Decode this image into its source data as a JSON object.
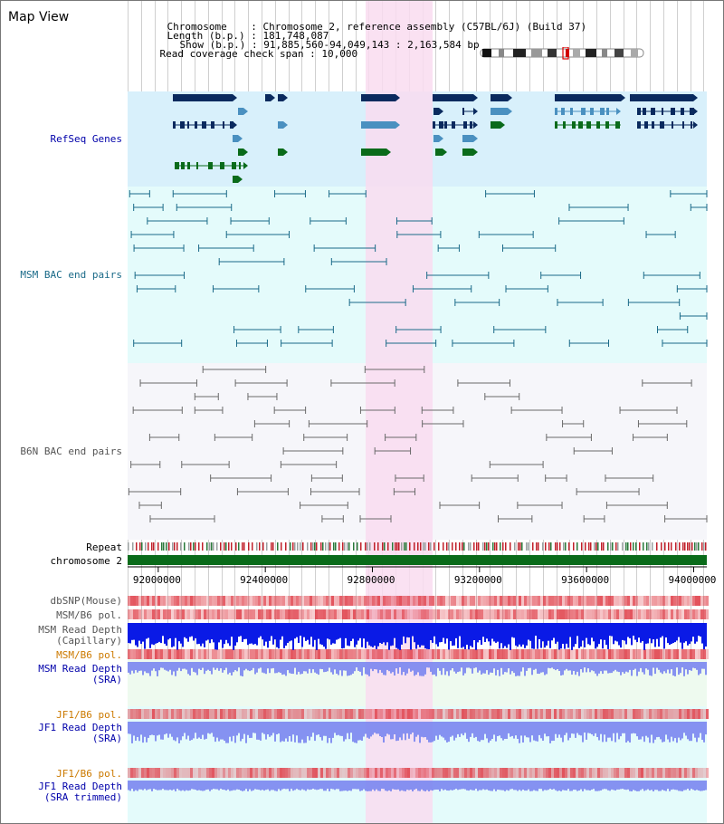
{
  "view": {
    "title": "Map View",
    "header": {
      "chromosome_label": "Chromosome",
      "chromosome_value": "Chromosome 2, reference assembly (C57BL/6J) (Build 37)",
      "length_label": "Length (b.p.)",
      "length_value": "181,748,087",
      "show_label": "Show (b.p.)",
      "show_value": "91,885,560-94,049,143 : 2,163,584 bp",
      "coverage_label": "Read coverage check span",
      "coverage_value": "10,000"
    }
  },
  "tracks": {
    "refseq": "RefSeq Genes",
    "msm_bac": "MSM BAC end pairs",
    "b6n_bac": "B6N BAC end pairs",
    "repeat": "Repeat",
    "chromosome": "chromosome 2",
    "dbsnp": "dbSNP(Mouse)",
    "msm_b6_pol_1": "MSM/B6 pol.",
    "msm_read_depth_cap_1": "MSM Read Depth",
    "msm_read_depth_cap_2": "(Capillary)",
    "msm_b6_pol_2": "MSM/B6 pol.",
    "msm_read_depth_sra_1": "MSM Read Depth",
    "msm_read_depth_sra_2": "(SRA)",
    "jf1_b6_pol_1": "JF1/B6 pol.",
    "jf1_read_depth_1": "JF1 Read Depth",
    "jf1_read_depth_2": "(SRA)",
    "jf1_b6_pol_2": "JF1/B6 pol.",
    "jf1_read_depth_trim_1": "JF1 Read Depth",
    "jf1_read_depth_trim_2": "(SRA trimmed)"
  },
  "axis": {
    "ticks": [
      "92000000",
      "92400000",
      "92800000",
      "93200000",
      "93600000",
      "94000000"
    ],
    "tick_positions_bp": [
      92000000,
      92400000,
      92800000,
      93200000,
      93600000,
      94000000
    ],
    "view_range_bp": [
      91885560,
      94049143
    ],
    "highlight_bp": [
      92800000,
      93000000
    ]
  },
  "colors": {
    "refseq_bg": "#d8f0fb",
    "msm_bg": "#e4fbfb",
    "b6n_bg": "#f5f5fa",
    "highlight": "#f9dcf0",
    "gene_dark": "#0a2a5e",
    "gene_mid": "#4a90c0",
    "gene_green": "#0a6b1a",
    "msm_pair": "#1a6a88",
    "b6n_pair": "#6a6a6a",
    "label_blue": "#0000aa",
    "label_teal": "#1a6a88",
    "label_orange": "#cc7a00",
    "label_gray": "#555555"
  }
}
